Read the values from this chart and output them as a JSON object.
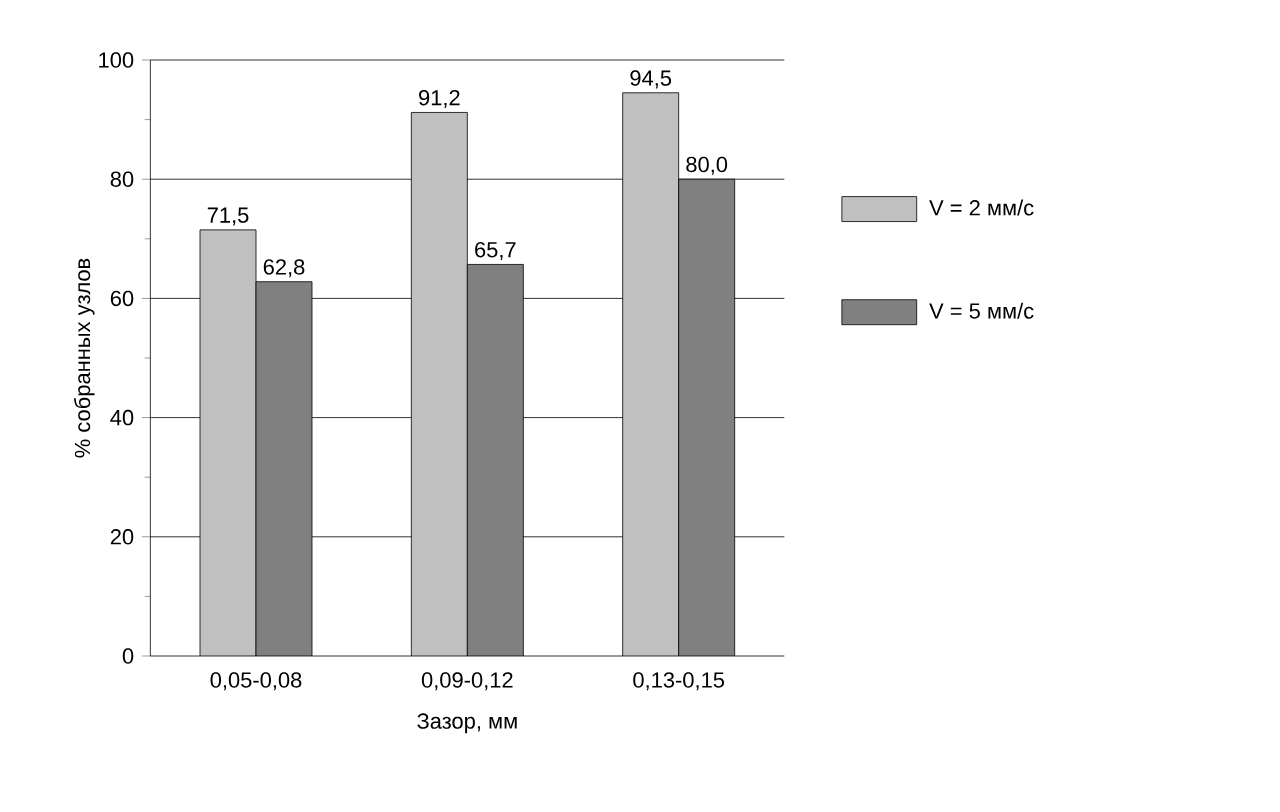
{
  "chart_data": {
    "type": "bar",
    "xlabel": "Зазор, мм",
    "ylabel": "% собранных узлов",
    "categories": [
      "0,05-0,08",
      "0,09-0,12",
      "0,13-0,15"
    ],
    "series": [
      {
        "name": "V = 2 мм/с",
        "color": "#c0c0c0",
        "values": [
          71.5,
          91.2,
          94.5
        ],
        "value_labels": [
          "71,5",
          "91,2",
          "94,5"
        ]
      },
      {
        "name": "V = 5 мм/с",
        "color": "#808080",
        "values": [
          62.8,
          65.7,
          80.0
        ],
        "value_labels": [
          "62,8",
          "65,7",
          "80,0"
        ]
      }
    ],
    "ylim": [
      0,
      100
    ],
    "yticks": [
      0,
      20,
      40,
      60,
      80,
      100
    ],
    "grid": "y",
    "legend": "right"
  }
}
